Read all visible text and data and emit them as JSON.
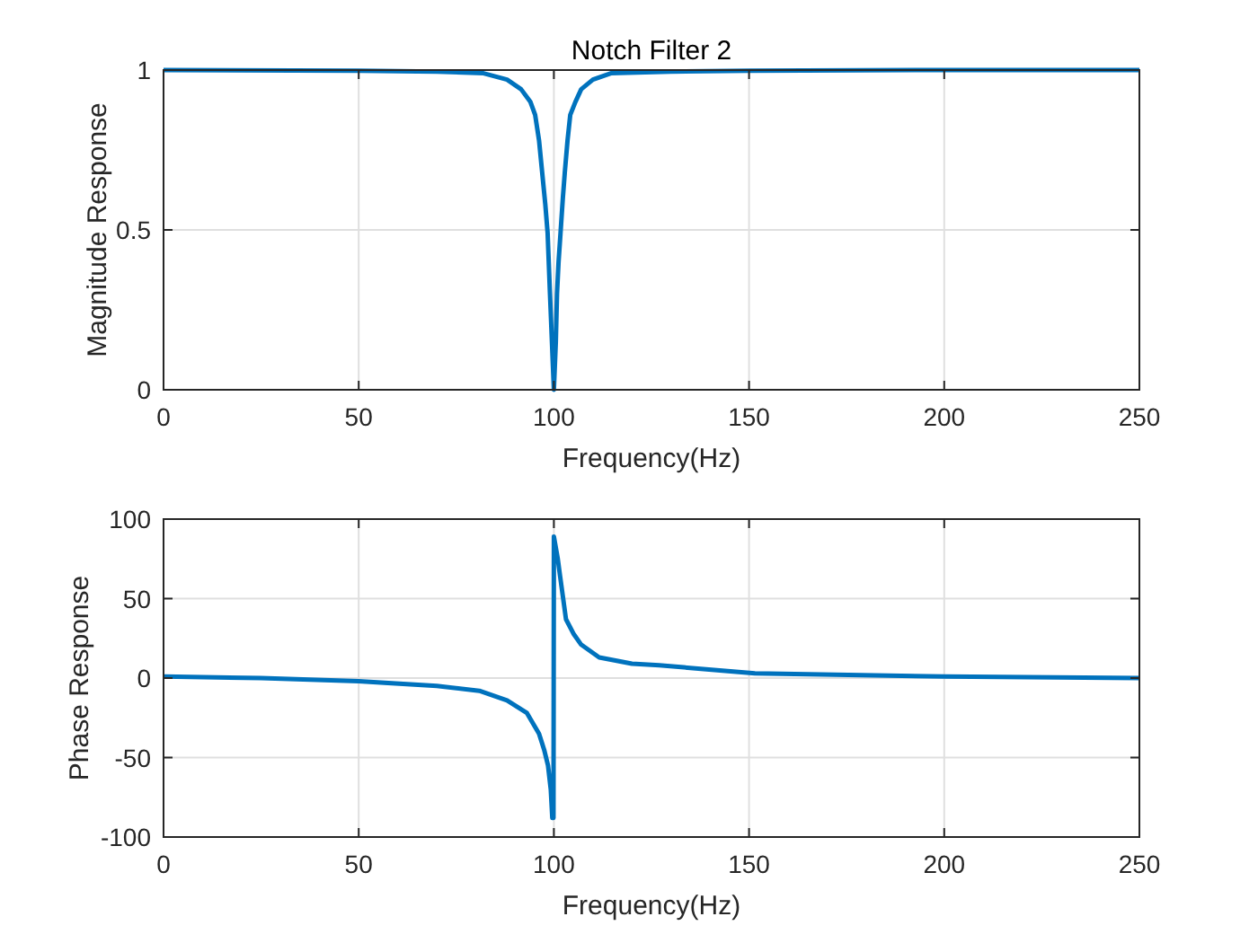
{
  "chart_data": [
    {
      "type": "line",
      "title": "Notch Filter 2",
      "xlabel": "Frequency(Hz)",
      "ylabel": "Magnitude Response",
      "xlim": [
        0,
        250
      ],
      "xticks": [
        0,
        50,
        100,
        150,
        200,
        250
      ],
      "ylim": [
        0,
        1
      ],
      "yticks": [
        0,
        0.5,
        1
      ],
      "grid": true,
      "series": [
        {
          "color": "#0072bd",
          "x": [
            0,
            50,
            70,
            82,
            88,
            91.6,
            94,
            95.2,
            96.2,
            97,
            97.8,
            98.4,
            99,
            99.5,
            100,
            100.5,
            100.8,
            101.2,
            101.7,
            102.3,
            102.8,
            103.5,
            104.2,
            105.5,
            107,
            110,
            114.6,
            130,
            150,
            200,
            250
          ],
          "values": [
            1,
            0.998,
            0.995,
            0.99,
            0.97,
            0.94,
            0.9,
            0.86,
            0.78,
            0.68,
            0.58,
            0.49,
            0.3,
            0.15,
            0,
            0.15,
            0.3,
            0.4,
            0.49,
            0.6,
            0.68,
            0.78,
            0.86,
            0.9,
            0.94,
            0.97,
            0.99,
            0.995,
            0.998,
            1,
            1
          ]
        }
      ]
    },
    {
      "type": "line",
      "xlabel": "Frequency(Hz)",
      "ylabel": "Phase Response",
      "xlim": [
        0,
        250
      ],
      "xticks": [
        0,
        50,
        100,
        150,
        200,
        250
      ],
      "ylim": [
        -100,
        100
      ],
      "yticks": [
        -100,
        -50,
        0,
        50,
        100
      ],
      "grid": true,
      "series": [
        {
          "color": "#0072bd",
          "x": [
            0,
            25,
            50,
            70,
            80.9,
            88,
            93.1,
            96.2,
            97.5,
            98.5,
            99.2,
            99.6,
            99.9,
            100,
            101,
            101.6,
            103.1,
            105,
            107,
            111.6,
            120,
            127,
            151.5,
            200,
            250
          ],
          "values": [
            1,
            0,
            -2,
            -5,
            -8,
            -14,
            -22,
            -35,
            -45,
            -55,
            -70,
            -88,
            -88,
            89,
            75,
            64,
            37,
            28,
            21,
            13,
            9,
            8,
            3,
            1,
            0
          ]
        }
      ]
    }
  ]
}
